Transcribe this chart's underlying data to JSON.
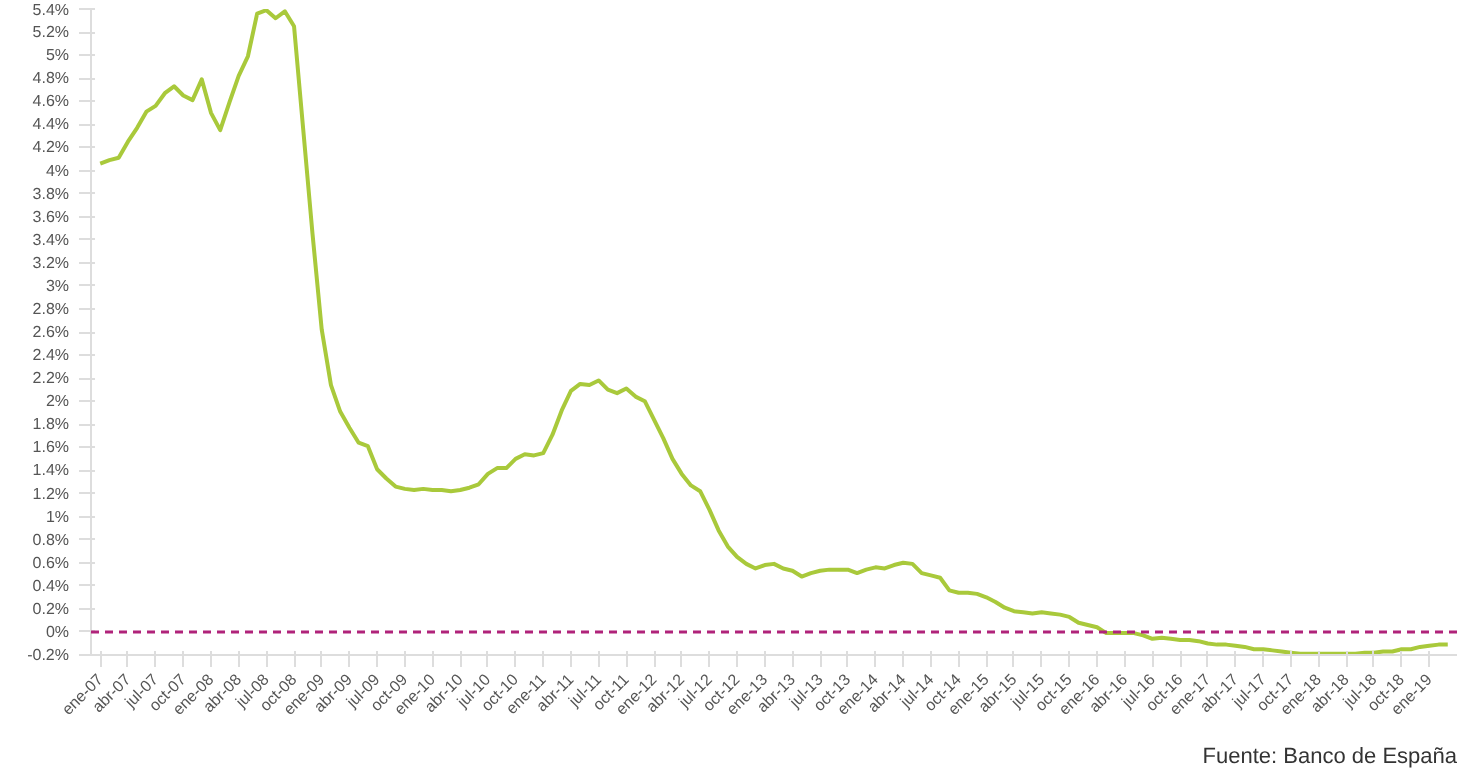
{
  "chart_data": {
    "type": "line",
    "categories": [
      "ene-07",
      null,
      null,
      "abr-07",
      null,
      null,
      "jul-07",
      null,
      null,
      "oct-07",
      null,
      null,
      "ene-08",
      null,
      null,
      "abr-08",
      null,
      null,
      "jul-08",
      null,
      null,
      "oct-08",
      null,
      null,
      "ene-09",
      null,
      null,
      "abr-09",
      null,
      null,
      "jul-09",
      null,
      null,
      "oct-09",
      null,
      null,
      "ene-10",
      null,
      null,
      "abr-10",
      null,
      null,
      "jul-10",
      null,
      null,
      "oct-10",
      null,
      null,
      "ene-11",
      null,
      null,
      "abr-11",
      null,
      null,
      "jul-11",
      null,
      null,
      "oct-11",
      null,
      null,
      "ene-12",
      null,
      null,
      "abr-12",
      null,
      null,
      "jul-12",
      null,
      null,
      "oct-12",
      null,
      null,
      "ene-13",
      null,
      null,
      "abr-13",
      null,
      null,
      "jul-13",
      null,
      null,
      "oct-13",
      null,
      null,
      "ene-14",
      null,
      null,
      "abr-14",
      null,
      null,
      "jul-14",
      null,
      null,
      "oct-14",
      null,
      null,
      "ene-15",
      null,
      null,
      "abr-15",
      null,
      null,
      "jul-15",
      null,
      null,
      "oct-15",
      null,
      null,
      "ene-16",
      null,
      null,
      "abr-16",
      null,
      null,
      "jul-16",
      null,
      null,
      "oct-16",
      null,
      null,
      "ene-17",
      null,
      null,
      "abr-17",
      null,
      null,
      "jul-17",
      null,
      null,
      "oct-17",
      null,
      null,
      "ene-18",
      null,
      null,
      "abr-18",
      null,
      null,
      "jul-18",
      null,
      null,
      "oct-18",
      null,
      null,
      "ene-19",
      null,
      null
    ],
    "series": [
      {
        "color": "#a9c93b",
        "values": [
          4.06,
          4.09,
          4.11,
          4.25,
          4.37,
          4.51,
          4.56,
          4.67,
          4.73,
          4.65,
          4.61,
          4.79,
          4.5,
          4.35,
          4.59,
          4.82,
          4.99,
          5.36,
          5.39,
          5.32,
          5.38,
          5.25,
          4.35,
          3.45,
          2.62,
          2.14,
          1.91,
          1.77,
          1.64,
          1.61,
          1.41,
          1.33,
          1.26,
          1.24,
          1.23,
          1.24,
          1.23,
          1.23,
          1.22,
          1.23,
          1.25,
          1.28,
          1.37,
          1.42,
          1.42,
          1.5,
          1.54,
          1.53,
          1.55,
          1.71,
          1.92,
          2.09,
          2.15,
          2.14,
          2.18,
          2.1,
          2.07,
          2.11,
          2.04,
          2.0,
          1.84,
          1.68,
          1.5,
          1.37,
          1.27,
          1.22,
          1.06,
          0.88,
          0.74,
          0.65,
          0.59,
          0.55,
          0.58,
          0.59,
          0.55,
          0.53,
          0.48,
          0.51,
          0.53,
          0.54,
          0.54,
          0.54,
          0.51,
          0.54,
          0.56,
          0.55,
          0.58,
          0.6,
          0.59,
          0.51,
          0.49,
          0.47,
          0.36,
          0.34,
          0.34,
          0.33,
          0.3,
          0.26,
          0.21,
          0.18,
          0.17,
          0.16,
          0.17,
          0.16,
          0.15,
          0.13,
          0.08,
          0.06,
          0.04,
          -0.01,
          -0.01,
          -0.01,
          -0.01,
          -0.03,
          -0.06,
          -0.05,
          -0.06,
          -0.07,
          -0.07,
          -0.08,
          -0.1,
          -0.11,
          -0.11,
          -0.12,
          -0.13,
          -0.15,
          -0.15,
          -0.16,
          -0.17,
          -0.18,
          -0.19,
          -0.19,
          -0.19,
          -0.19,
          -0.19,
          -0.19,
          -0.19,
          -0.18,
          -0.18,
          -0.17,
          -0.17,
          -0.15,
          -0.15,
          -0.13,
          -0.12,
          -0.11,
          -0.11
        ]
      }
    ],
    "ylim": [
      -0.2,
      5.4
    ],
    "yticks": [
      {
        "value": -0.2,
        "label": "-0.2%"
      },
      {
        "value": 0,
        "label": "0%"
      },
      {
        "value": 0.2,
        "label": "0.2%"
      },
      {
        "value": 0.4,
        "label": "0.4%"
      },
      {
        "value": 0.6,
        "label": "0.6%"
      },
      {
        "value": 0.8,
        "label": "0.8%"
      },
      {
        "value": 1,
        "label": "1%"
      },
      {
        "value": 1.2,
        "label": "1.2%"
      },
      {
        "value": 1.4,
        "label": "1.4%"
      },
      {
        "value": 1.6,
        "label": "1.6%"
      },
      {
        "value": 1.8,
        "label": "1.8%"
      },
      {
        "value": 2,
        "label": "2%"
      },
      {
        "value": 2.2,
        "label": "2.2%"
      },
      {
        "value": 2.4,
        "label": "2.4%"
      },
      {
        "value": 2.6,
        "label": "2.6%"
      },
      {
        "value": 2.8,
        "label": "2.8%"
      },
      {
        "value": 3,
        "label": "3%"
      },
      {
        "value": 3.2,
        "label": "3.2%"
      },
      {
        "value": 3.4,
        "label": "3.4%"
      },
      {
        "value": 3.6,
        "label": "3.6%"
      },
      {
        "value": 3.8,
        "label": "3.8%"
      },
      {
        "value": 4,
        "label": "4%"
      },
      {
        "value": 4.2,
        "label": "4.2%"
      },
      {
        "value": 4.4,
        "label": "4.4%"
      },
      {
        "value": 4.6,
        "label": "4.6%"
      },
      {
        "value": 4.8,
        "label": "4.8%"
      },
      {
        "value": 5,
        "label": "5%"
      },
      {
        "value": 5.2,
        "label": "5.2%"
      },
      {
        "value": 5.4,
        "label": "5.4%"
      }
    ],
    "ref_lines": [
      {
        "axis": "y",
        "value": 0,
        "color": "#b0237a",
        "line_style": "dashed"
      }
    ],
    "grid": false,
    "annotations": [
      "Fuente: Banco de España"
    ]
  }
}
